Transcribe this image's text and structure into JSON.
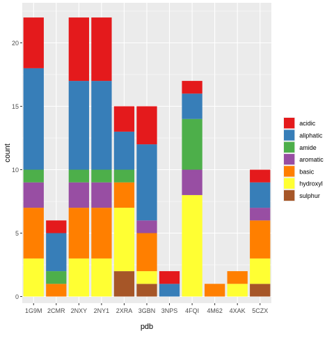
{
  "chart_data": {
    "type": "bar",
    "stacked": true,
    "xlabel": "pdb",
    "ylabel": "count",
    "ylim": [
      0,
      22.5
    ],
    "yticks": [
      0,
      5,
      10,
      15,
      20
    ],
    "grid": true,
    "legend_position": "right",
    "categories": [
      "1G9M",
      "2CMR",
      "2NXY",
      "2NY1",
      "2XRA",
      "3GBN",
      "3NPS",
      "4FQI",
      "4M62",
      "4XAK",
      "5CZX"
    ],
    "series": [
      {
        "name": "sulphur",
        "color": "#A65628",
        "values": [
          0,
          0,
          0,
          0,
          2,
          1,
          0,
          0,
          0,
          0,
          1
        ]
      },
      {
        "name": "hydroxyl",
        "color": "#FFFF33",
        "values": [
          3,
          0,
          3,
          3,
          5,
          1,
          0,
          8,
          0,
          1,
          2
        ]
      },
      {
        "name": "basic",
        "color": "#FF7F00",
        "values": [
          4,
          1,
          4,
          4,
          2,
          3,
          0,
          0,
          1,
          1,
          3
        ]
      },
      {
        "name": "aromatic",
        "color": "#984EA3",
        "values": [
          2,
          0,
          2,
          2,
          0,
          1,
          0,
          2,
          0,
          0,
          1
        ]
      },
      {
        "name": "amide",
        "color": "#4DAF4A",
        "values": [
          1,
          1,
          1,
          1,
          1,
          0,
          0,
          4,
          0,
          0,
          0
        ]
      },
      {
        "name": "aliphatic",
        "color": "#377EB8",
        "values": [
          8,
          3,
          7,
          7,
          3,
          6,
          1,
          2,
          0,
          0,
          2
        ]
      },
      {
        "name": "acidic",
        "color": "#E41A1C",
        "values": [
          4,
          1,
          5,
          5,
          2,
          3,
          1,
          1,
          0,
          0,
          1
        ]
      }
    ],
    "legend_order": [
      "acidic",
      "aliphatic",
      "amide",
      "aromatic",
      "basic",
      "hydroxyl",
      "sulphur"
    ]
  }
}
